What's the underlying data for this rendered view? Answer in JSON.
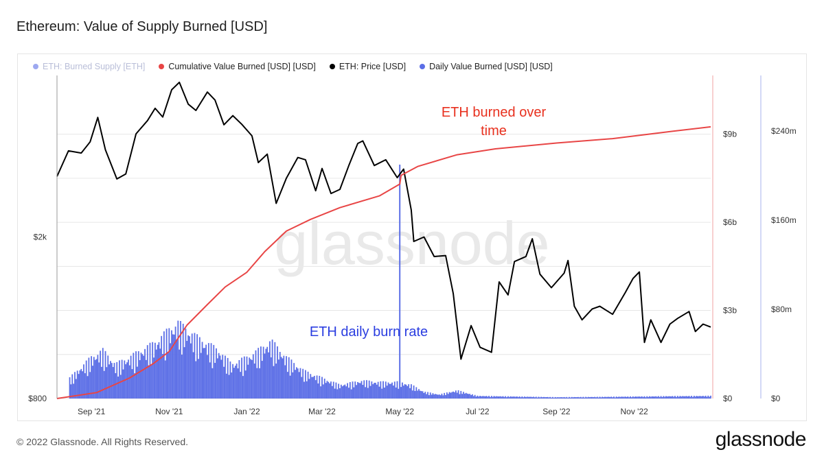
{
  "title": "Ethereum: Value of Supply Burned [USD]",
  "watermark": "glassnode",
  "footer": {
    "copyright": "© 2022 Glassnode. All Rights Reserved.",
    "brand": "glassnode"
  },
  "colors": {
    "cumulative": "#e84545",
    "price": "#000000",
    "daily": "#5b6ee6",
    "burned_supply": "#5b6ee6",
    "grid": "#e6e6e6"
  },
  "chart_data": {
    "type": "line",
    "x_ticks": [
      "Sep '21",
      "Nov '21",
      "Jan '22",
      "Mar '22",
      "May '22",
      "Jul '22",
      "Sep '22",
      "Nov '22"
    ],
    "left_axis": {
      "ticks": [
        "$2k",
        "$800"
      ],
      "scale": "log",
      "range": [
        800,
        5000
      ]
    },
    "right_axis_1": {
      "ticks": [
        "$9b",
        "$6b",
        "$3b",
        "$0"
      ],
      "range": [
        0,
        11000000000
      ]
    },
    "right_axis_2": {
      "ticks": [
        "$240m",
        "$160m",
        "$80m",
        "$0"
      ],
      "range": [
        0,
        290000000
      ]
    },
    "legend": [
      {
        "name": "ETH: Burned Supply [ETH]",
        "color": "#5b6ee6",
        "muted": true
      },
      {
        "name": "Cumulative Value Burned [USD] [USD]",
        "color": "#e84545",
        "muted": false
      },
      {
        "name": "ETH: Price [USD]",
        "color": "#000000",
        "muted": false
      },
      {
        "name": "Daily Value Burned [USD] [USD]",
        "color": "#5b6ee6",
        "muted": false
      }
    ],
    "annotations": [
      {
        "text_lines": [
          "ETH burned over",
          "time"
        ],
        "color": "#e8301e"
      },
      {
        "text_lines": [
          "ETH daily burn rate"
        ],
        "color": "#2a3de0"
      }
    ],
    "x_range": [
      "2021-08-05",
      "2022-12-31"
    ],
    "series": [
      {
        "name": "ETH: Price [USD]",
        "axis": "left",
        "points": [
          [
            "2021-08-05",
            2820
          ],
          [
            "2021-08-14",
            3260
          ],
          [
            "2021-08-24",
            3220
          ],
          [
            "2021-08-31",
            3430
          ],
          [
            "2021-09-06",
            3940
          ],
          [
            "2021-09-12",
            3280
          ],
          [
            "2021-09-21",
            2780
          ],
          [
            "2021-09-28",
            2860
          ],
          [
            "2021-10-06",
            3590
          ],
          [
            "2021-10-15",
            3870
          ],
          [
            "2021-10-21",
            4150
          ],
          [
            "2021-10-27",
            3950
          ],
          [
            "2021-11-03",
            4610
          ],
          [
            "2021-11-09",
            4810
          ],
          [
            "2021-11-16",
            4250
          ],
          [
            "2021-11-22",
            4100
          ],
          [
            "2021-12-01",
            4550
          ],
          [
            "2021-12-07",
            4350
          ],
          [
            "2021-12-14",
            3780
          ],
          [
            "2021-12-21",
            3980
          ],
          [
            "2021-12-28",
            3790
          ],
          [
            "2022-01-05",
            3550
          ],
          [
            "2022-01-10",
            3050
          ],
          [
            "2022-01-17",
            3200
          ],
          [
            "2022-01-24",
            2420
          ],
          [
            "2022-02-01",
            2790
          ],
          [
            "2022-02-10",
            3140
          ],
          [
            "2022-02-16",
            3100
          ],
          [
            "2022-02-24",
            2600
          ],
          [
            "2022-03-01",
            2950
          ],
          [
            "2022-03-08",
            2560
          ],
          [
            "2022-03-15",
            2620
          ],
          [
            "2022-03-22",
            3000
          ],
          [
            "2022-03-29",
            3400
          ],
          [
            "2022-04-02",
            3450
          ],
          [
            "2022-04-11",
            3000
          ],
          [
            "2022-04-20",
            3100
          ],
          [
            "2022-04-29",
            2800
          ],
          [
            "2022-05-04",
            2940
          ],
          [
            "2022-05-10",
            2330
          ],
          [
            "2022-05-12",
            1950
          ],
          [
            "2022-05-20",
            2000
          ],
          [
            "2022-05-28",
            1790
          ],
          [
            "2022-06-06",
            1800
          ],
          [
            "2022-06-12",
            1450
          ],
          [
            "2022-06-18",
            1000
          ],
          [
            "2022-06-26",
            1210
          ],
          [
            "2022-07-03",
            1070
          ],
          [
            "2022-07-12",
            1040
          ],
          [
            "2022-07-18",
            1550
          ],
          [
            "2022-07-25",
            1440
          ],
          [
            "2022-07-30",
            1740
          ],
          [
            "2022-08-08",
            1790
          ],
          [
            "2022-08-13",
            1980
          ],
          [
            "2022-08-19",
            1620
          ],
          [
            "2022-08-28",
            1500
          ],
          [
            "2022-09-07",
            1630
          ],
          [
            "2022-09-10",
            1750
          ],
          [
            "2022-09-15",
            1350
          ],
          [
            "2022-09-21",
            1250
          ],
          [
            "2022-09-29",
            1330
          ],
          [
            "2022-10-05",
            1350
          ],
          [
            "2022-10-15",
            1290
          ],
          [
            "2022-10-25",
            1460
          ],
          [
            "2022-10-31",
            1580
          ],
          [
            "2022-11-05",
            1640
          ],
          [
            "2022-11-09",
            1100
          ],
          [
            "2022-11-14",
            1250
          ],
          [
            "2022-11-22",
            1100
          ],
          [
            "2022-11-29",
            1220
          ],
          [
            "2022-12-05",
            1260
          ],
          [
            "2022-12-14",
            1310
          ],
          [
            "2022-12-19",
            1170
          ],
          [
            "2022-12-25",
            1220
          ],
          [
            "2022-12-31",
            1200
          ]
        ]
      },
      {
        "name": "Cumulative Value Burned [USD] [USD]",
        "axis": "right_1",
        "points": [
          [
            "2021-08-05",
            0
          ],
          [
            "2021-09-05",
            200000000
          ],
          [
            "2021-10-01",
            700000000
          ],
          [
            "2021-10-20",
            1200000000
          ],
          [
            "2021-11-01",
            1600000000
          ],
          [
            "2021-11-15",
            2500000000
          ],
          [
            "2021-12-01",
            3200000000
          ],
          [
            "2021-12-15",
            3800000000
          ],
          [
            "2022-01-01",
            4300000000
          ],
          [
            "2022-01-15",
            5000000000
          ],
          [
            "2022-02-01",
            5700000000
          ],
          [
            "2022-02-20",
            6100000000
          ],
          [
            "2022-03-15",
            6500000000
          ],
          [
            "2022-04-15",
            6900000000
          ],
          [
            "2022-05-01",
            7300000000
          ],
          [
            "2022-05-02",
            7600000000
          ],
          [
            "2022-05-15",
            7900000000
          ],
          [
            "2022-06-15",
            8300000000
          ],
          [
            "2022-07-15",
            8500000000
          ],
          [
            "2022-09-01",
            8700000000
          ],
          [
            "2022-10-15",
            8850000000
          ],
          [
            "2022-12-01",
            9100000000
          ],
          [
            "2022-12-31",
            9250000000
          ]
        ]
      },
      {
        "name": "Daily Value Burned [USD] [USD]",
        "axis": "right_2",
        "type": "bar",
        "points": [
          [
            "2021-08-15",
            15000000
          ],
          [
            "2021-09-01",
            30000000
          ],
          [
            "2021-09-10",
            35000000
          ],
          [
            "2021-09-20",
            25000000
          ],
          [
            "2021-10-01",
            30000000
          ],
          [
            "2021-10-10",
            35000000
          ],
          [
            "2021-10-20",
            40000000
          ],
          [
            "2021-11-01",
            50000000
          ],
          [
            "2021-11-08",
            55000000
          ],
          [
            "2021-11-15",
            50000000
          ],
          [
            "2021-11-22",
            45000000
          ],
          [
            "2021-12-01",
            40000000
          ],
          [
            "2021-12-10",
            35000000
          ],
          [
            "2021-12-20",
            25000000
          ],
          [
            "2022-01-01",
            30000000
          ],
          [
            "2022-01-10",
            35000000
          ],
          [
            "2022-01-20",
            42000000
          ],
          [
            "2022-02-01",
            30000000
          ],
          [
            "2022-02-15",
            20000000
          ],
          [
            "2022-03-01",
            15000000
          ],
          [
            "2022-03-15",
            10000000
          ],
          [
            "2022-04-01",
            13000000
          ],
          [
            "2022-04-15",
            12000000
          ],
          [
            "2022-05-01",
            12000000
          ],
          [
            "2022-05-10",
            10000000
          ],
          [
            "2022-05-20",
            5000000
          ],
          [
            "2022-06-01",
            3000000
          ],
          [
            "2022-06-15",
            6000000
          ],
          [
            "2022-07-01",
            2000000
          ],
          [
            "2022-08-01",
            1500000
          ],
          [
            "2022-09-01",
            1000000
          ],
          [
            "2022-10-01",
            1200000
          ],
          [
            "2022-11-01",
            1500000
          ],
          [
            "2022-12-01",
            1800000
          ],
          [
            "2022-12-31",
            2000000
          ]
        ]
      }
    ]
  }
}
